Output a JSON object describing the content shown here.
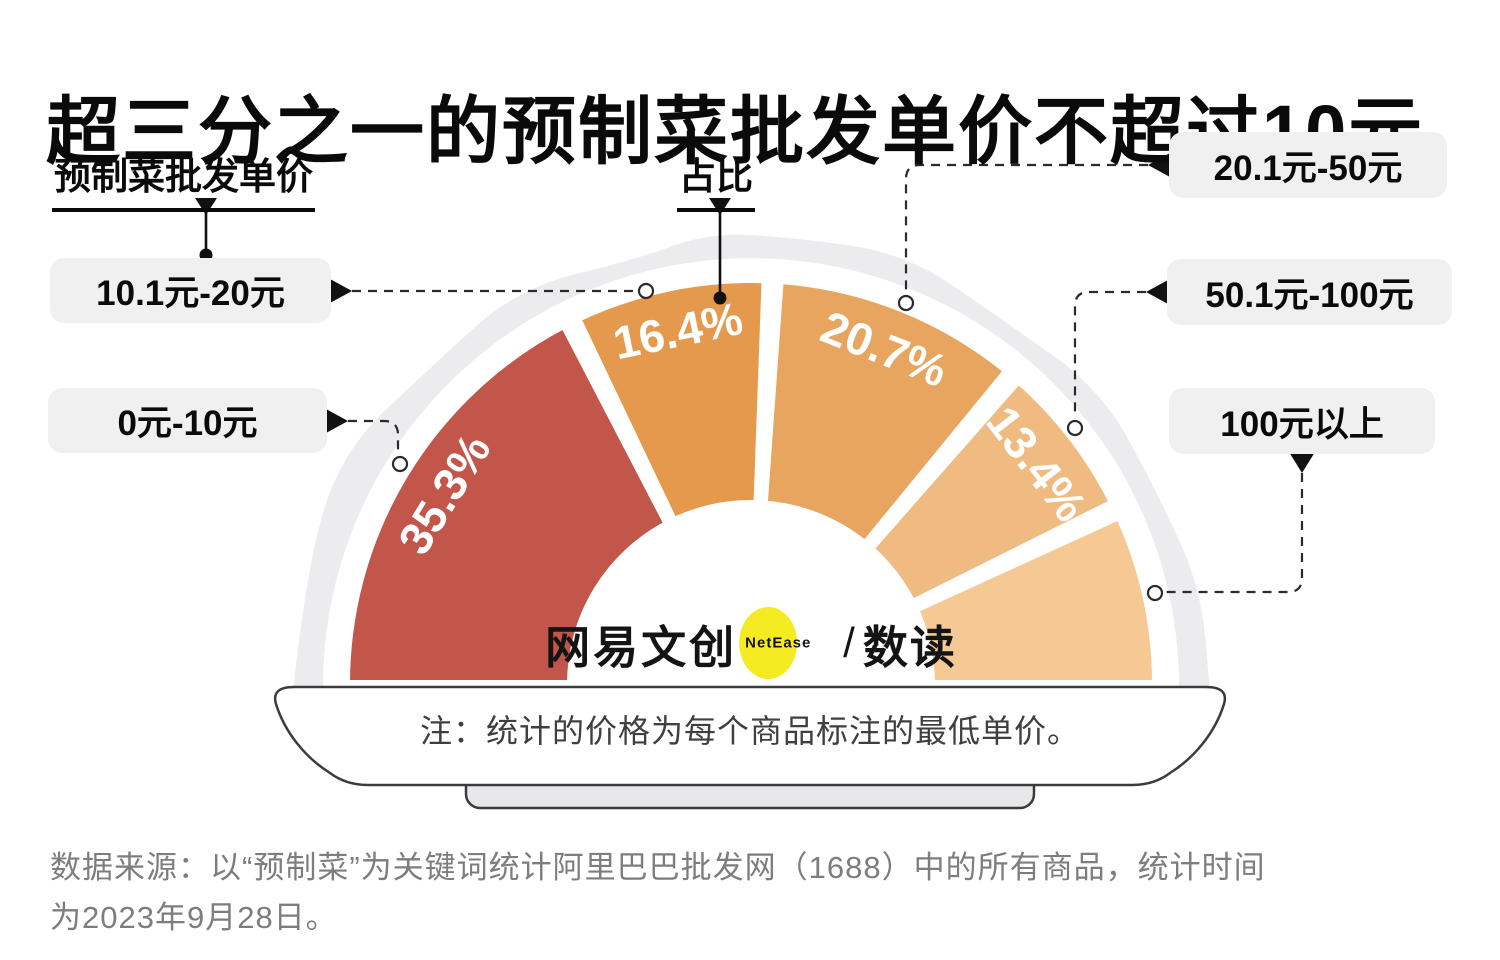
{
  "title": "超三分之一的预制菜批发单价不超过10元",
  "callouts": {
    "price_axis_label": "预制菜批发单价",
    "share_axis_label": "占比"
  },
  "chart_data": {
    "type": "pie",
    "subtype": "half-donut-gauge",
    "title": "超三分之一的预制菜批发单价不超过10元",
    "category_axis_label": "预制菜批发单价",
    "value_axis_label": "占比",
    "unit": "%",
    "start_angle_deg": 180,
    "end_angle_deg": 0,
    "total": 100,
    "segments": [
      {
        "category": "0元-10元",
        "value": 35.3,
        "display": "35.3%",
        "color": "#C2564B"
      },
      {
        "category": "10.1元-20元",
        "value": 16.4,
        "display": "16.4%",
        "color": "#E4994C"
      },
      {
        "category": "20.1元-50元",
        "value": 20.7,
        "display": "20.7%",
        "color": "#E7A55F"
      },
      {
        "category": "50.1元-100元",
        "value": 13.4,
        "display": "13.4%",
        "color": "#EFBB81"
      },
      {
        "category": "100元以上",
        "value": 14.2,
        "display": "",
        "color": "#F6C893"
      }
    ]
  },
  "note": "注：统计的价格为每个商品标注的最低单价。",
  "source": {
    "line1": "数据来源：以“预制菜”为关键词统计阿里巴巴批发网（1688）中的所有商品，统计时间",
    "line2": "为2023年9月28日。"
  },
  "logo": {
    "brand": "网易文创",
    "netease": "NetEase",
    "separator": "/",
    "product": "数读"
  },
  "colors": {
    "background": "#FFFFFF",
    "steam_blob": "#ECECEE",
    "plate_fill": "#FFFFFF",
    "plate_outline": "#3B3B3B",
    "plate_foot": "#E8E8EA",
    "callout_box": "#F0F0F1",
    "logo_yellow": "#F4EB23",
    "source_text": "#7D7D7D"
  }
}
